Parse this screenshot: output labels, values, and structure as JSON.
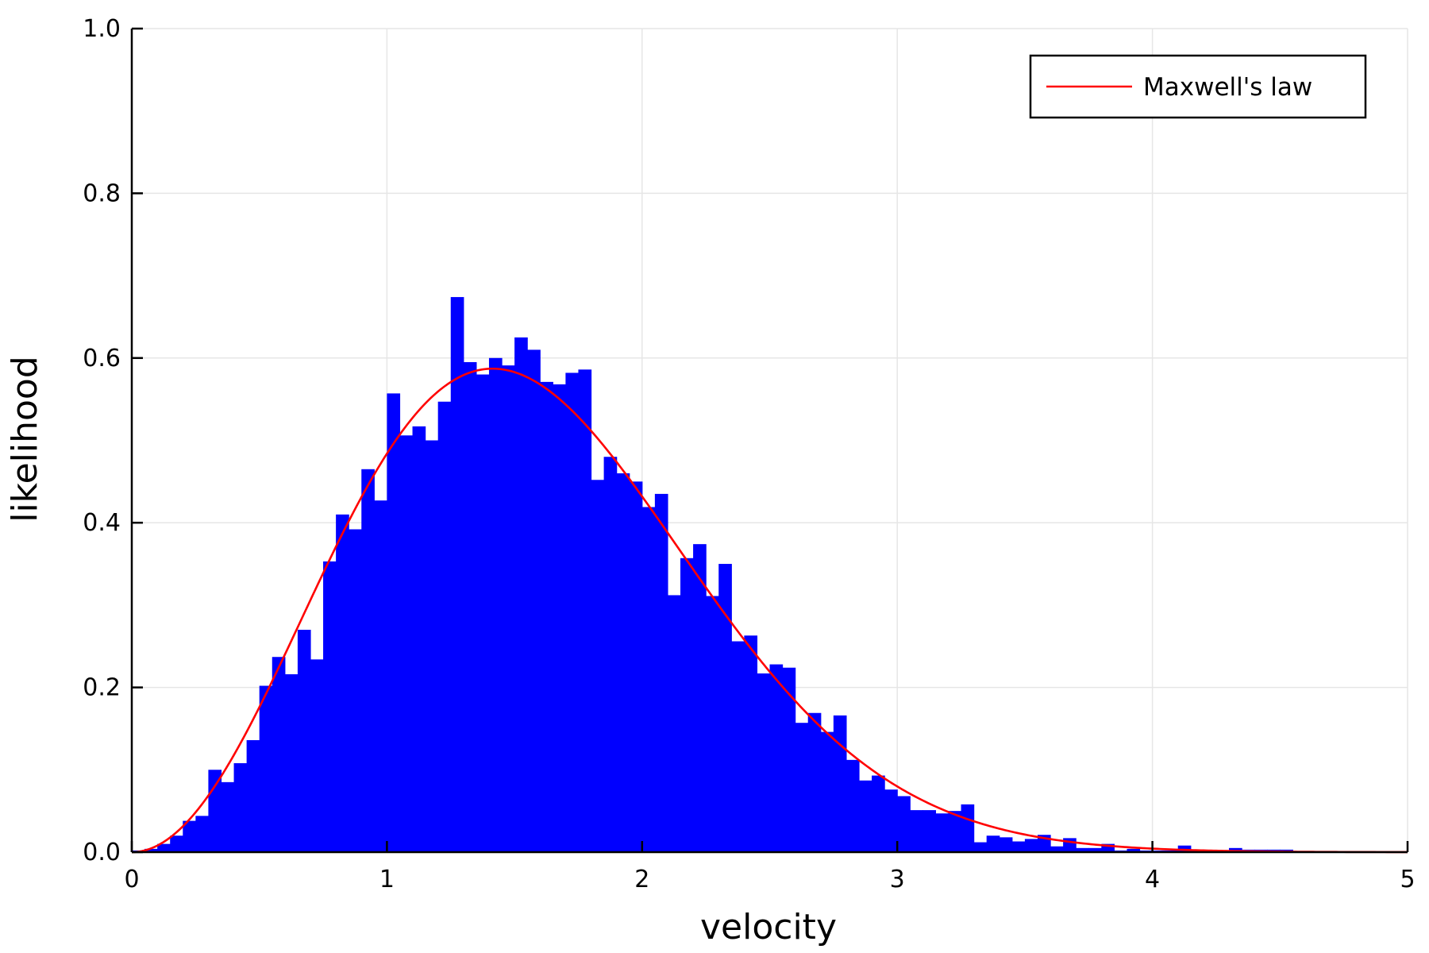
{
  "chart_data": {
    "type": "bar",
    "title": "",
    "xlabel": "velocity",
    "ylabel": "likelihood",
    "xlim": [
      0,
      5
    ],
    "ylim": [
      0,
      1.0
    ],
    "grid": true,
    "legend_position": "top-right",
    "x_ticks": [
      {
        "value": 0,
        "label": "0"
      },
      {
        "value": 1,
        "label": "1"
      },
      {
        "value": 2,
        "label": "2"
      },
      {
        "value": 3,
        "label": "3"
      },
      {
        "value": 4,
        "label": "4"
      },
      {
        "value": 5,
        "label": "5"
      }
    ],
    "y_ticks": [
      {
        "value": 0.0,
        "label": "0.0"
      },
      {
        "value": 0.2,
        "label": "0.2"
      },
      {
        "value": 0.4,
        "label": "0.4"
      },
      {
        "value": 0.6,
        "label": "0.6"
      },
      {
        "value": 0.8,
        "label": "0.8"
      },
      {
        "value": 1.0,
        "label": "1.0"
      }
    ],
    "histogram": {
      "color": "#0000ff",
      "bin_width": 0.05,
      "bin_start": 0.0,
      "values": [
        0.002,
        0.004,
        0.01,
        0.02,
        0.038,
        0.044,
        0.1,
        0.085,
        0.108,
        0.136,
        0.202,
        0.237,
        0.216,
        0.27,
        0.234,
        0.353,
        0.41,
        0.392,
        0.465,
        0.427,
        0.557,
        0.506,
        0.517,
        0.5,
        0.547,
        0.674,
        0.595,
        0.58,
        0.6,
        0.591,
        0.625,
        0.61,
        0.571,
        0.568,
        0.582,
        0.586,
        0.452,
        0.48,
        0.46,
        0.45,
        0.419,
        0.435,
        0.312,
        0.357,
        0.374,
        0.311,
        0.35,
        0.256,
        0.263,
        0.217,
        0.228,
        0.224,
        0.157,
        0.169,
        0.146,
        0.166,
        0.112,
        0.087,
        0.093,
        0.076,
        0.068,
        0.051,
        0.051,
        0.047,
        0.05,
        0.058,
        0.012,
        0.02,
        0.018,
        0.013,
        0.016,
        0.021,
        0.007,
        0.017,
        0.005,
        0.005,
        0.01,
        0.002,
        0.004,
        0.002,
        0.002,
        0.002,
        0.008,
        0.002,
        0.002,
        0.002,
        0.005,
        0.003,
        0.003,
        0.003,
        0.003,
        0.0,
        0.0,
        0.0,
        0.0,
        0.0,
        0.0,
        0.0,
        0.0,
        0.0
      ]
    },
    "series": [
      {
        "name": "Maxwell's law",
        "type": "line",
        "color": "#ff0000",
        "function": "maxwell",
        "parameter_a": 1
      }
    ]
  }
}
